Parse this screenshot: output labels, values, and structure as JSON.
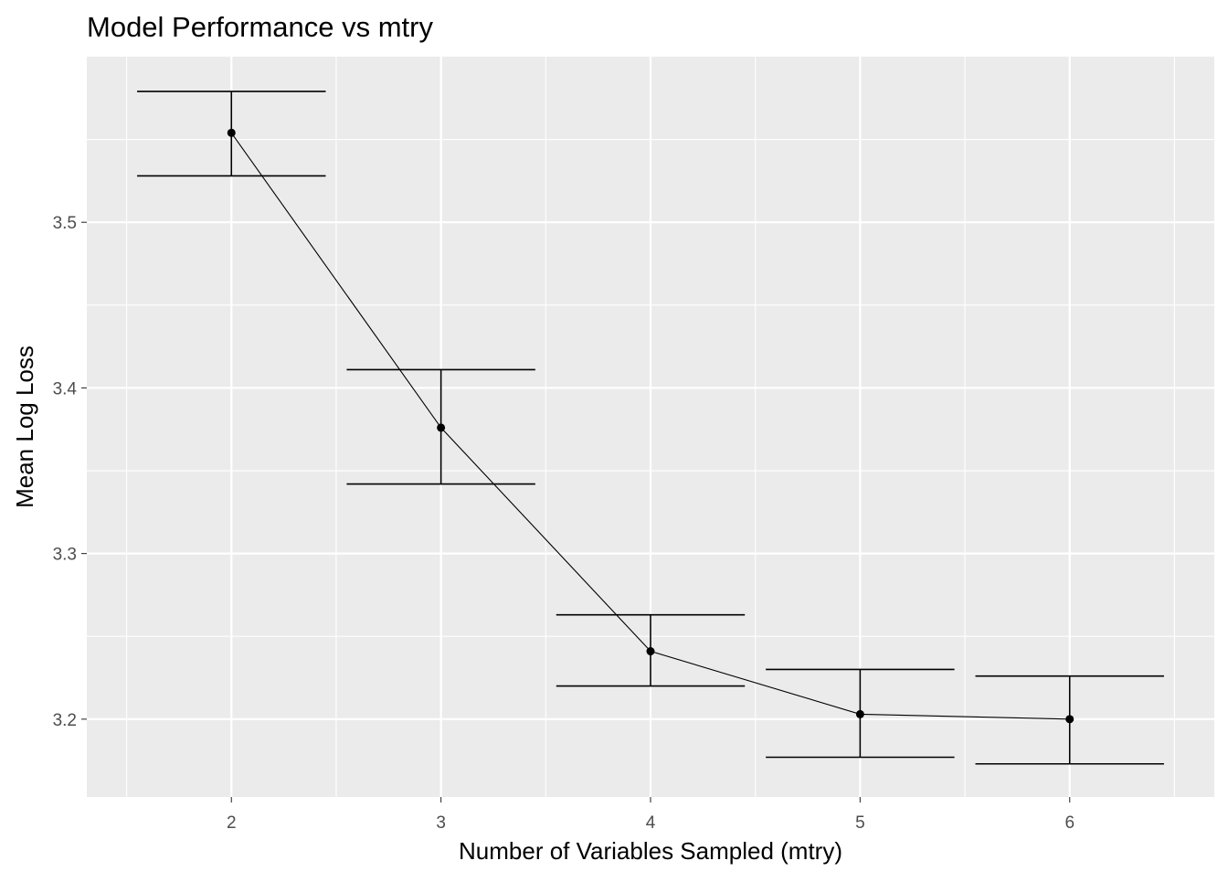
{
  "chart_data": {
    "type": "line",
    "title": "Model Performance vs mtry",
    "xlabel": "Number of Variables Sampled (mtry)",
    "ylabel": "Mean Log Loss",
    "x": [
      2,
      3,
      4,
      5,
      6
    ],
    "x_tick_labels": [
      "2",
      "3",
      "4",
      "5",
      "6"
    ],
    "y_tick_labels": [
      "3.2",
      "3.3",
      "3.4",
      "3.5"
    ],
    "y_ticks": [
      3.2,
      3.3,
      3.4,
      3.5
    ],
    "xlim": [
      1.31,
      6.69
    ],
    "ylim": [
      3.153,
      3.6
    ],
    "series": [
      {
        "values": [
          3.554,
          3.376,
          3.241,
          3.203,
          3.2
        ],
        "error_low": [
          3.528,
          3.342,
          3.22,
          3.177,
          3.173
        ],
        "error_high": [
          3.579,
          3.411,
          3.263,
          3.23,
          3.226
        ]
      }
    ],
    "grid": true,
    "panel_background": "#ebebeb",
    "grid_color": "#ffffff",
    "line_color": "#000000",
    "tick_label_color": "#4d4d4d"
  }
}
